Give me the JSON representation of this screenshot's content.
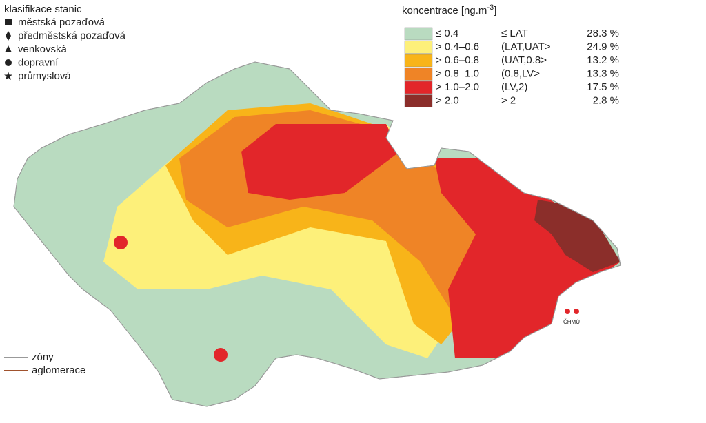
{
  "station_legend": {
    "title": "klasifikace stanic",
    "items": [
      "městská pozaďová",
      "předměstská pozaďová",
      "venkovská",
      "dopravní",
      "průmyslová"
    ]
  },
  "concentration_legend": {
    "title": "koncentrace [ng.m",
    "title_sup": "-3",
    "title_end": "]",
    "rows": [
      {
        "range": "≤ 0.4",
        "class": "≤ LAT",
        "percent": "28.3 %",
        "color": "#b9dbc0"
      },
      {
        "range": "> 0.4–0.6",
        "class": "(LAT,UAT>",
        "percent": "24.9 %",
        "color": "#fdf07a"
      },
      {
        "range": "> 0.6–0.8",
        "class": "(UAT,0.8>",
        "percent": "13.2 %",
        "color": "#f8b419"
      },
      {
        "range": "> 0.8–1.0",
        "class": "(0.8,LV>",
        "percent": "13.3 %",
        "color": "#ef8426"
      },
      {
        "range": "> 1.0–2.0",
        "class": "(LV,2)",
        "percent": "17.5 %",
        "color": "#e2262a"
      },
      {
        "range": "> 2.0",
        "class": "> 2",
        "percent": "2.8 %",
        "color": "#8b2e2a"
      }
    ]
  },
  "line_legend": [
    "zóny",
    "aglomerace"
  ],
  "logo": "ČHMÚ"
}
